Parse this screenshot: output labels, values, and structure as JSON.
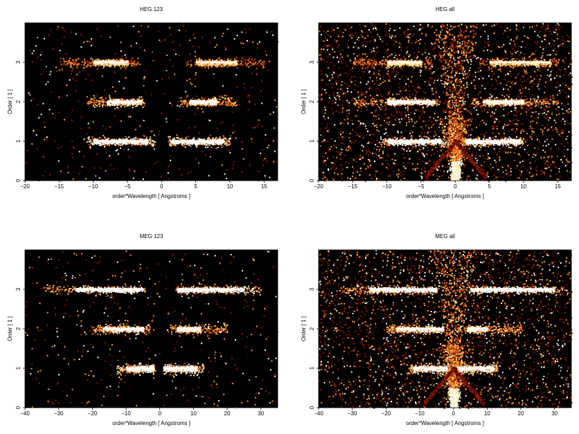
{
  "chart_data": [
    {
      "type": "heatmap",
      "title": "HEG 123",
      "xlabel": "order*Wavelength [ Angstroms ]",
      "ylabel": "Order [ 1 ]",
      "xlim": [
        -20,
        17
      ],
      "ylim": [
        0,
        4
      ],
      "xticks": [
        -20,
        -15,
        -10,
        -5,
        0,
        5,
        10,
        15
      ],
      "yticks": [
        0,
        1,
        2,
        3
      ],
      "background": "#000000",
      "colormap": [
        "#3a0000",
        "#8b1a00",
        "#d2490c",
        "#ff9d2e",
        "#ffe9a8",
        "#ffffff"
      ],
      "bands": [
        {
          "order": 1,
          "x": [
            -11,
            -1
          ],
          "core": [
            -10,
            -2
          ],
          "intensity": 1.0
        },
        {
          "order": 1,
          "x": [
            1,
            10
          ],
          "core": [
            1.5,
            9
          ],
          "intensity": 1.0
        },
        {
          "order": 2,
          "x": [
            -11,
            -2.5
          ],
          "core": [
            -8,
            -3
          ],
          "intensity": 0.85
        },
        {
          "order": 2,
          "x": [
            2.5,
            11
          ],
          "core": [
            4,
            8
          ],
          "intensity": 0.8
        },
        {
          "order": 3,
          "x": [
            -15,
            -3.5
          ],
          "core": [
            -10,
            -5
          ],
          "intensity": 0.7
        },
        {
          "order": 3,
          "x": [
            3.5,
            15
          ],
          "core": [
            5,
            11
          ],
          "intensity": 0.65
        }
      ],
      "scatter": 0.15,
      "zero_order_wedge": 0.0
    },
    {
      "type": "heatmap",
      "title": "HEG all",
      "xlabel": "order*Wavelength [ Angstroms ]",
      "ylabel": "Order [ 1 ]",
      "xlim": [
        -20,
        17
      ],
      "ylim": [
        0,
        4
      ],
      "xticks": [
        -20,
        -15,
        -10,
        -5,
        0,
        5,
        10,
        15
      ],
      "yticks": [
        0,
        1,
        2,
        3
      ],
      "background": "#000000",
      "colormap": [
        "#3a0000",
        "#8b1a00",
        "#d2490c",
        "#ff9d2e",
        "#ffe9a8",
        "#ffffff"
      ],
      "bands": [
        {
          "order": 1,
          "x": [
            -11,
            -1
          ],
          "core": [
            -10,
            -2
          ],
          "intensity": 1.0
        },
        {
          "order": 1,
          "x": [
            1,
            10
          ],
          "core": [
            1.5,
            9.5
          ],
          "intensity": 1.0
        },
        {
          "order": 2,
          "x": [
            -15,
            -2.5
          ],
          "core": [
            -10,
            -3
          ],
          "intensity": 0.85
        },
        {
          "order": 2,
          "x": [
            2.5,
            15
          ],
          "core": [
            4,
            10
          ],
          "intensity": 0.8
        },
        {
          "order": 3,
          "x": [
            -15,
            -3.5
          ],
          "core": [
            -10,
            -5
          ],
          "intensity": 0.7
        },
        {
          "order": 3,
          "x": [
            3.5,
            15
          ],
          "core": [
            5,
            14
          ],
          "intensity": 0.65
        }
      ],
      "scatter": 1.0,
      "zero_order_wedge": 1.0
    },
    {
      "type": "heatmap",
      "title": "MEG 123",
      "xlabel": "order*Wavelength [ Angstroms ]",
      "ylabel": "Order [ 1 ]",
      "xlim": [
        -40,
        35
      ],
      "ylim": [
        0,
        4
      ],
      "xticks": [
        -40,
        -30,
        -20,
        -10,
        0,
        10,
        20,
        30
      ],
      "yticks": [
        0,
        1,
        2,
        3
      ],
      "background": "#000000",
      "colormap": [
        "#3a0000",
        "#8b1a00",
        "#d2490c",
        "#ff9d2e",
        "#ffe9a8",
        "#ffffff"
      ],
      "bands": [
        {
          "order": 1,
          "x": [
            -13,
            -1.5
          ],
          "core": [
            -10,
            -2
          ],
          "intensity": 1.0
        },
        {
          "order": 1,
          "x": [
            1,
            13
          ],
          "core": [
            1,
            11
          ],
          "intensity": 1.0
        },
        {
          "order": 2,
          "x": [
            -20,
            -3
          ],
          "core": [
            -17,
            -5
          ],
          "intensity": 0.85
        },
        {
          "order": 2,
          "x": [
            3,
            20
          ],
          "core": [
            5,
            12
          ],
          "intensity": 0.8
        },
        {
          "order": 3,
          "x": [
            -34,
            -4.5
          ],
          "core": [
            -25,
            -5
          ],
          "intensity": 0.9
        },
        {
          "order": 3,
          "x": [
            4.5,
            30
          ],
          "core": [
            5,
            25
          ],
          "intensity": 0.9
        }
      ],
      "scatter": 0.15,
      "zero_order_wedge": 0.0
    },
    {
      "type": "heatmap",
      "title": "MEG all",
      "xlabel": "order*Wavelength [ Angstroms ]",
      "ylabel": "Order [ 1 ]",
      "xlim": [
        -40,
        35
      ],
      "ylim": [
        0,
        4
      ],
      "xticks": [
        -40,
        -30,
        -20,
        -10,
        0,
        10,
        20,
        30
      ],
      "yticks": [
        0,
        1,
        2,
        3
      ],
      "background": "#000000",
      "colormap": [
        "#3a0000",
        "#8b1a00",
        "#d2490c",
        "#ff9d2e",
        "#ffe9a8",
        "#ffffff"
      ],
      "bands": [
        {
          "order": 1,
          "x": [
            -13,
            -1.5
          ],
          "core": [
            -12,
            -2
          ],
          "intensity": 1.0
        },
        {
          "order": 1,
          "x": [
            1,
            13
          ],
          "core": [
            1.5,
            12
          ],
          "intensity": 1.0
        },
        {
          "order": 2,
          "x": [
            -20,
            -3
          ],
          "core": [
            -17,
            -3
          ],
          "intensity": 0.85
        },
        {
          "order": 2,
          "x": [
            3,
            20
          ],
          "core": [
            4,
            10
          ],
          "intensity": 0.8
        },
        {
          "order": 3,
          "x": [
            -34,
            -4.5
          ],
          "core": [
            -25,
            -5
          ],
          "intensity": 0.9
        },
        {
          "order": 3,
          "x": [
            4.5,
            34
          ],
          "core": [
            5,
            30
          ],
          "intensity": 0.9
        }
      ],
      "scatter": 1.0,
      "zero_order_wedge": 1.0
    }
  ]
}
